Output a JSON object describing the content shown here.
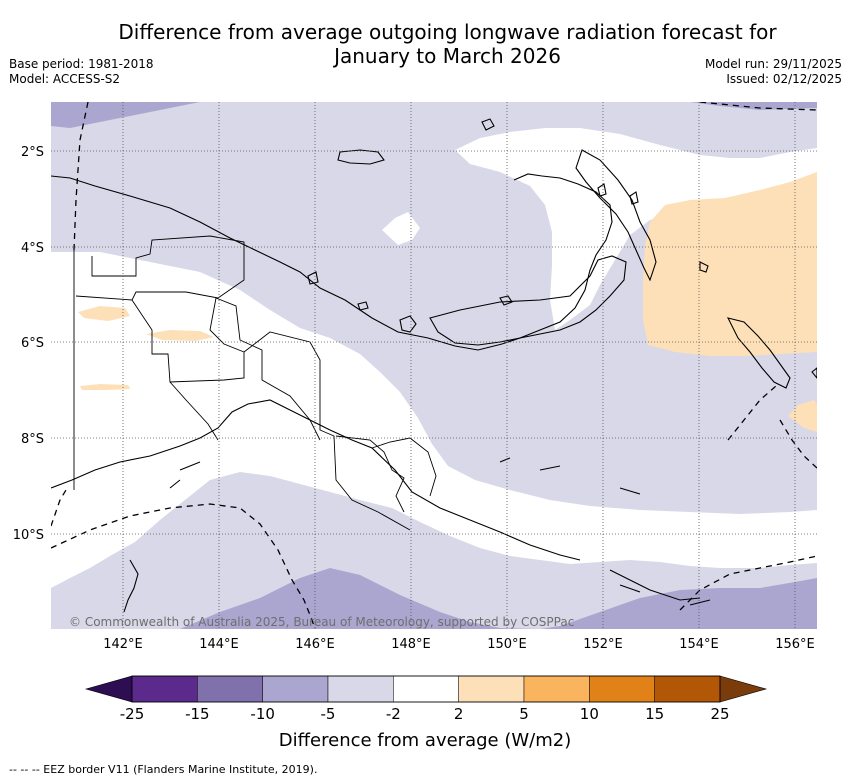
{
  "header": {
    "title_line1": "Difference from average outgoing longwave radiation forecast for",
    "title_line2": "January to March 2026",
    "base_period": "Base period: 1981-2018",
    "model": "Model: ACCESS-S2",
    "model_run": "Model run: 29/11/2025",
    "issued": "Issued: 02/12/2025"
  },
  "map": {
    "lat_labels": [
      "2°S",
      "4°S",
      "6°S",
      "8°S",
      "10°S"
    ],
    "lon_labels": [
      "142°E",
      "144°E",
      "146°E",
      "148°E",
      "150°E",
      "152°E",
      "154°E",
      "156°E"
    ],
    "attribution": "© Commonwealth of Australia 2025, Bureau of Meteorology, supported by COSPPac"
  },
  "colorbar": {
    "ticks": [
      "-25",
      "-15",
      "-10",
      "-5",
      "-2",
      "2",
      "5",
      "10",
      "15",
      "25"
    ],
    "colors": [
      "#5b2a8c",
      "#8070ab",
      "#aba6cf",
      "#d8d8e8",
      "#ffffff",
      "#fde0b8",
      "#fbb45e",
      "#e08218",
      "#b15706"
    ],
    "under_color": "#2d0e52",
    "over_color": "#7a3c0a",
    "title": "Difference from average (W/m2)"
  },
  "footer": {
    "legend": "-- -- -- EEZ border V11 (Flanders Marine Institute, 2019)."
  }
}
